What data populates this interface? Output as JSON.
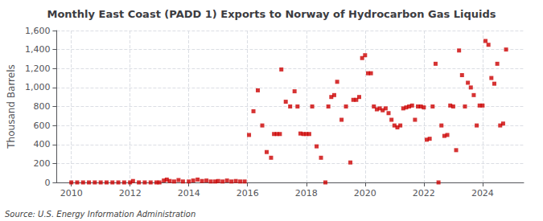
{
  "chart_data": {
    "type": "scatter",
    "title": "Monthly East Coast (PADD 1) Exports to Norway of Hydrocarbon Gas Liquids",
    "ylabel": "Thousand Barrels",
    "annotations": [
      "Source: U.S. Energy Information Administration"
    ],
    "color": "#cc0000",
    "marker": "square",
    "grid": true,
    "xlim": [
      2009.5,
      2025.4
    ],
    "xticks": [
      2010,
      2012,
      2014,
      2016,
      2018,
      2020,
      2022,
      2024
    ],
    "ylim": [
      0,
      1600
    ],
    "yticks": [
      0,
      200,
      400,
      600,
      800,
      {
        "value": 1000,
        "label": "1,000"
      },
      {
        "value": 1200,
        "label": "1,200"
      },
      {
        "value": 1400,
        "label": "1,400"
      },
      {
        "value": 1600,
        "label": "1,600"
      }
    ],
    "x": [
      2010.0,
      2010.2,
      2010.4,
      2010.6,
      2010.8,
      2011.0,
      2011.2,
      2011.4,
      2011.6,
      2011.8,
      2012.0,
      2012.1,
      2012.3,
      2012.5,
      2012.7,
      2012.9,
      2013.0,
      2013.15,
      2013.25,
      2013.35,
      2013.5,
      2013.65,
      2013.8,
      2014.0,
      2014.15,
      2014.3,
      2014.45,
      2014.6,
      2014.75,
      2014.9,
      2015.0,
      2015.15,
      2015.3,
      2015.45,
      2015.6,
      2015.75,
      2015.9,
      2016.05,
      2016.2,
      2016.35,
      2016.5,
      2016.65,
      2016.8,
      2016.9,
      2017.0,
      2017.1,
      2017.15,
      2017.3,
      2017.45,
      2017.6,
      2017.7,
      2017.8,
      2017.9,
      2018.0,
      2018.1,
      2018.2,
      2018.35,
      2018.5,
      2018.65,
      2018.75,
      2018.85,
      2018.95,
      2019.05,
      2019.2,
      2019.35,
      2019.5,
      2019.6,
      2019.7,
      2019.8,
      2019.9,
      2020.0,
      2020.1,
      2020.2,
      2020.3,
      2020.4,
      2020.5,
      2020.6,
      2020.7,
      2020.8,
      2020.9,
      2021.0,
      2021.1,
      2021.2,
      2021.3,
      2021.4,
      2021.5,
      2021.6,
      2021.7,
      2021.8,
      2021.9,
      2022.0,
      2022.1,
      2022.2,
      2022.3,
      2022.4,
      2022.5,
      2022.6,
      2022.7,
      2022.8,
      2022.9,
      2023.0,
      2023.1,
      2023.2,
      2023.3,
      2023.4,
      2023.5,
      2023.6,
      2023.7,
      2023.8,
      2023.9,
      2024.0,
      2024.1,
      2024.2,
      2024.3,
      2024.4,
      2024.5,
      2024.6,
      2024.7,
      2024.8
    ],
    "values": [
      0,
      0,
      0,
      0,
      0,
      0,
      0,
      0,
      0,
      0,
      0,
      15,
      0,
      0,
      0,
      0,
      0,
      20,
      30,
      15,
      10,
      25,
      10,
      10,
      20,
      30,
      15,
      20,
      10,
      10,
      15,
      10,
      20,
      10,
      15,
      10,
      10,
      500,
      750,
      970,
      600,
      320,
      260,
      510,
      510,
      510,
      1190,
      850,
      800,
      960,
      800,
      515,
      510,
      510,
      510,
      800,
      380,
      260,
      0,
      800,
      900,
      920,
      1060,
      660,
      800,
      210,
      870,
      870,
      900,
      1310,
      1340,
      1150,
      1150,
      800,
      770,
      780,
      760,
      780,
      730,
      660,
      600,
      580,
      600,
      780,
      790,
      800,
      810,
      660,
      800,
      800,
      790,
      450,
      460,
      800,
      1250,
      0,
      600,
      490,
      500,
      810,
      800,
      340,
      1390,
      1130,
      800,
      1050,
      1000,
      920,
      600,
      810,
      810,
      1490,
      1450,
      1100,
      1040,
      1250,
      600,
      620,
      1400
    ]
  }
}
